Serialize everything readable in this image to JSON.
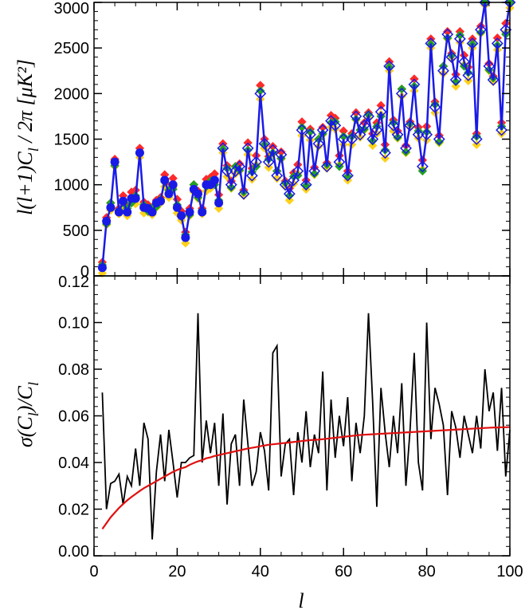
{
  "chart_data": [
    {
      "type": "scatter",
      "title": "",
      "xlabel": "",
      "ylabel": "l(l+1)C_l / 2π [μK²]",
      "ylabel_text": {
        "prefix": "l(l+1)C",
        "subscript": "l",
        "suffix": " / 2π [μK²]"
      },
      "xlim": [
        0,
        100
      ],
      "ylim": [
        0,
        3000
      ],
      "x_ticks": [
        "0",
        "20",
        "40",
        "60",
        "80",
        "100"
      ],
      "y_ticks": [
        "0",
        "500",
        "1000",
        "1500",
        "2000",
        "2500",
        "3000"
      ],
      "grid": false,
      "legend": "none",
      "x": [
        2,
        3,
        4,
        5,
        6,
        7,
        8,
        9,
        10,
        11,
        12,
        13,
        14,
        15,
        16,
        17,
        18,
        19,
        20,
        21,
        22,
        23,
        24,
        25,
        26,
        27,
        28,
        29,
        30,
        31,
        32,
        33,
        34,
        35,
        36,
        37,
        38,
        39,
        40,
        41,
        42,
        43,
        44,
        45,
        46,
        47,
        48,
        49,
        50,
        51,
        52,
        53,
        54,
        55,
        56,
        57,
        58,
        59,
        60,
        61,
        62,
        63,
        64,
        65,
        66,
        67,
        68,
        69,
        70,
        71,
        72,
        73,
        74,
        75,
        76,
        77,
        78,
        79,
        80,
        81,
        82,
        83,
        84,
        85,
        86,
        87,
        88,
        89,
        90,
        91,
        92,
        93,
        94,
        95,
        96,
        97,
        98,
        99,
        100
      ],
      "series": [
        {
          "color": "#1a1ae6",
          "style": "line+filled-circles (l<=30), line+open-diamonds (l>30)",
          "values": [
            90,
            600,
            750,
            1250,
            700,
            820,
            700,
            850,
            850,
            1350,
            750,
            740,
            700,
            800,
            820,
            1050,
            900,
            1000,
            750,
            660,
            420,
            700,
            950,
            900,
            700,
            1000,
            1000,
            1050,
            800,
            1400,
            1150,
            1000,
            1150,
            1200,
            900,
            1400,
            1100,
            1250,
            2000,
            1450,
            1250,
            1380,
            1100,
            1330,
            1000,
            900,
            1050,
            1150,
            1600,
            1000,
            1550,
            1150,
            1450,
            1600,
            1200,
            1700,
            1650,
            1250,
            1500,
            1100,
            1500,
            1750,
            1550,
            1650,
            1750,
            1500,
            1600,
            1800,
            1350,
            2300,
            1650,
            1550,
            2000,
            1400,
            1650,
            2100,
            1550,
            1200,
            1550,
            2550,
            1850,
            1500,
            2250,
            2650,
            2400,
            2150,
            2600,
            2350,
            2200,
            2550,
            1500,
            2700,
            3000,
            2300,
            2150,
            2550,
            1600,
            2700,
            3000
          ]
        }
      ],
      "scatter_offsets": [
        {
          "color": "#ff2a2a",
          "values": [
            60,
            40,
            50,
            30,
            40,
            60,
            80,
            70,
            90,
            50
          ]
        },
        {
          "color": "#ffd11a",
          "values": [
            -60,
            -40,
            -30,
            -50,
            -20,
            -70,
            -40,
            -30,
            -60,
            -50
          ]
        },
        {
          "color": "#22a022",
          "values": [
            30,
            -30,
            50,
            -40,
            20,
            -20,
            40,
            -50,
            30,
            -10
          ]
        }
      ]
    },
    {
      "type": "line",
      "title": "",
      "xlabel": "l",
      "ylabel": "σ(C_l)/C_l",
      "ylabel_text": {
        "prefix": "σ(C",
        "subscript": "l",
        "middle": ")/C",
        "subscript2": "l"
      },
      "xlim": [
        0,
        100
      ],
      "ylim": [
        0,
        0.12
      ],
      "x_ticks": [
        "0",
        "20",
        "40",
        "60",
        "80",
        "100"
      ],
      "y_ticks": [
        "0.00",
        "0.02",
        "0.04",
        "0.06",
        "0.08",
        "0.10",
        "0.12"
      ],
      "grid": false,
      "legend": "none",
      "x": [
        2,
        3,
        4,
        5,
        6,
        7,
        8,
        9,
        10,
        11,
        12,
        13,
        14,
        15,
        16,
        17,
        18,
        19,
        20,
        21,
        22,
        23,
        24,
        25,
        26,
        27,
        28,
        29,
        30,
        31,
        32,
        33,
        34,
        35,
        36,
        37,
        38,
        39,
        40,
        41,
        42,
        43,
        44,
        45,
        46,
        47,
        48,
        49,
        50,
        51,
        52,
        53,
        54,
        55,
        56,
        57,
        58,
        59,
        60,
        61,
        62,
        63,
        64,
        65,
        66,
        67,
        68,
        69,
        70,
        71,
        72,
        73,
        74,
        75,
        76,
        77,
        78,
        79,
        80,
        81,
        82,
        83,
        84,
        85,
        86,
        87,
        88,
        89,
        90,
        91,
        92,
        93,
        94,
        95,
        96,
        97,
        98,
        99,
        100
      ],
      "series": [
        {
          "color": "#000000",
          "values": [
            0.07,
            0.02,
            0.031,
            0.032,
            0.035,
            0.022,
            0.034,
            0.03,
            0.046,
            0.03,
            0.057,
            0.05,
            0.007,
            0.036,
            0.052,
            0.032,
            0.054,
            0.04,
            0.025,
            0.04,
            0.04,
            0.042,
            0.043,
            0.104,
            0.04,
            0.058,
            0.044,
            0.057,
            0.03,
            0.061,
            0.022,
            0.048,
            0.052,
            0.03,
            0.067,
            0.048,
            0.03,
            0.036,
            0.053,
            0.045,
            0.028,
            0.087,
            0.09,
            0.034,
            0.048,
            0.05,
            0.026,
            0.053,
            0.04,
            0.062,
            0.038,
            0.052,
            0.044,
            0.079,
            0.028,
            0.067,
            0.042,
            0.06,
            0.047,
            0.068,
            0.032,
            0.057,
            0.044,
            0.06,
            0.104,
            0.066,
            0.021,
            0.072,
            0.053,
            0.038,
            0.06,
            0.044,
            0.074,
            0.03,
            0.054,
            0.087,
            0.04,
            0.028,
            0.1,
            0.05,
            0.072,
            0.065,
            0.056,
            0.026,
            0.062,
            0.055,
            0.042,
            0.06,
            0.052,
            0.044,
            0.06,
            0.046,
            0.08,
            0.062,
            0.07,
            0.045,
            0.072,
            0.034,
            0.054
          ]
        },
        {
          "color": "#e01010",
          "values": [
            0.0115,
            0.014,
            0.0165,
            0.0185,
            0.0205,
            0.0222,
            0.0238,
            0.0252,
            0.0265,
            0.0278,
            0.029,
            0.03,
            0.031,
            0.032,
            0.033,
            0.034,
            0.035,
            0.036,
            0.0368,
            0.0375,
            0.038,
            0.039,
            0.0398,
            0.0405,
            0.041,
            0.0418,
            0.0422,
            0.0428,
            0.0432,
            0.0436,
            0.044,
            0.0444,
            0.0448,
            0.0452,
            0.0456,
            0.046,
            0.0463,
            0.0466,
            0.047,
            0.0473,
            0.0476,
            0.0478,
            0.048,
            0.0482,
            0.0484,
            0.0486,
            0.0488,
            0.049,
            0.0492,
            0.0494,
            0.0496,
            0.0497,
            0.0498,
            0.05,
            0.0502,
            0.0504,
            0.0506,
            0.0508,
            0.051,
            0.0512,
            0.0514,
            0.0516,
            0.0518,
            0.0519,
            0.052,
            0.0521,
            0.0522,
            0.0523,
            0.0524,
            0.0525,
            0.0526,
            0.0527,
            0.0528,
            0.0529,
            0.053,
            0.0531,
            0.0532,
            0.0533,
            0.0534,
            0.0535,
            0.0536,
            0.0537,
            0.0538,
            0.0539,
            0.054,
            0.0541,
            0.0542,
            0.0543,
            0.0544,
            0.0545,
            0.0546,
            0.0547,
            0.0548,
            0.0549,
            0.055,
            0.055,
            0.0551,
            0.0551,
            0.0552
          ]
        }
      ]
    }
  ]
}
